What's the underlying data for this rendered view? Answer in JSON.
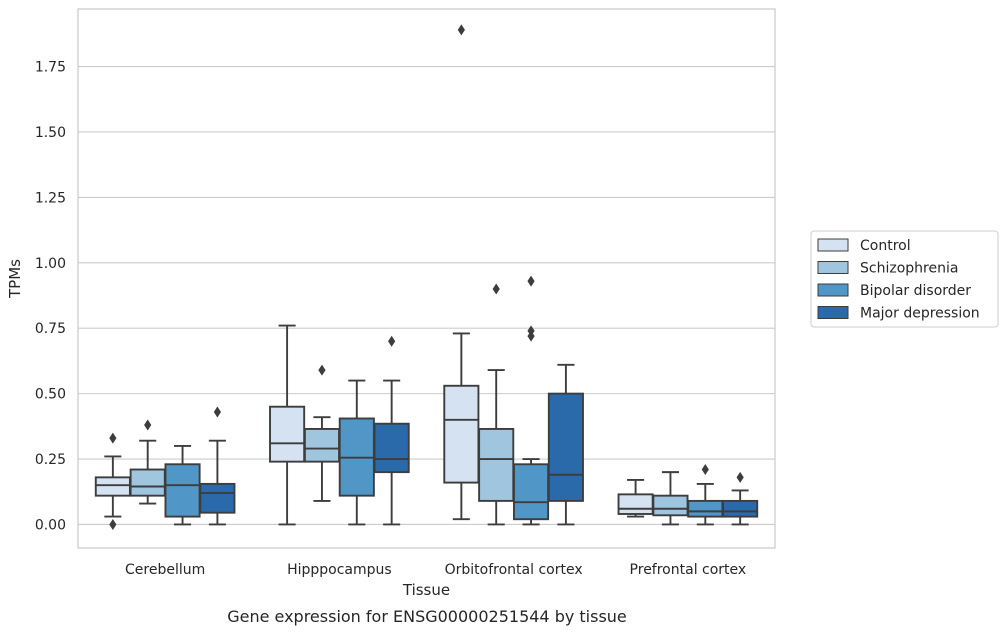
{
  "chart_data": {
    "type": "box",
    "caption": "Gene expression for ENSG00000251544 by tissue",
    "xlabel": "Tissue",
    "ylabel": "TPMs",
    "ylim": [
      -0.09,
      1.97
    ],
    "yticks": [
      "0.00",
      "0.25",
      "0.50",
      "0.75",
      "1.00",
      "1.25",
      "1.50",
      "1.75"
    ],
    "categories": [
      "Cerebellum",
      "Hipppocampus",
      "Orbitofrontal cortex",
      "Prefrontal cortex"
    ],
    "grid": true,
    "legend_position": "right",
    "series": [
      {
        "name": "Control",
        "color": "#d4e2f1",
        "boxes": [
          {
            "q1": 0.11,
            "median": 0.15,
            "q3": 0.18,
            "whislo": 0.03,
            "whishi": 0.26,
            "fliers": [
              0.33,
              0.0
            ]
          },
          {
            "q1": 0.24,
            "median": 0.31,
            "q3": 0.45,
            "whislo": 0.0,
            "whishi": 0.76,
            "fliers": []
          },
          {
            "q1": 0.16,
            "median": 0.4,
            "q3": 0.53,
            "whislo": 0.02,
            "whishi": 0.73,
            "fliers": [
              1.89
            ]
          },
          {
            "q1": 0.04,
            "median": 0.06,
            "q3": 0.115,
            "whislo": 0.03,
            "whishi": 0.17,
            "fliers": []
          }
        ]
      },
      {
        "name": "Schizophrenia",
        "color": "#9fc5df",
        "boxes": [
          {
            "q1": 0.11,
            "median": 0.145,
            "q3": 0.21,
            "whislo": 0.08,
            "whishi": 0.32,
            "fliers": [
              0.38
            ]
          },
          {
            "q1": 0.24,
            "median": 0.29,
            "q3": 0.365,
            "whislo": 0.09,
            "whishi": 0.41,
            "fliers": [
              0.59
            ]
          },
          {
            "q1": 0.09,
            "median": 0.25,
            "q3": 0.365,
            "whislo": 0.0,
            "whishi": 0.59,
            "fliers": [
              0.9
            ]
          },
          {
            "q1": 0.035,
            "median": 0.06,
            "q3": 0.11,
            "whislo": 0.0,
            "whishi": 0.2,
            "fliers": []
          }
        ]
      },
      {
        "name": "Bipolar disorder",
        "color": "#5096c6",
        "boxes": [
          {
            "q1": 0.03,
            "median": 0.15,
            "q3": 0.23,
            "whislo": 0.0,
            "whishi": 0.3,
            "fliers": []
          },
          {
            "q1": 0.11,
            "median": 0.255,
            "q3": 0.405,
            "whislo": 0.0,
            "whishi": 0.55,
            "fliers": []
          },
          {
            "q1": 0.02,
            "median": 0.085,
            "q3": 0.23,
            "whislo": 0.0,
            "whishi": 0.25,
            "fliers": [
              0.93,
              0.74,
              0.72
            ]
          },
          {
            "q1": 0.03,
            "median": 0.05,
            "q3": 0.09,
            "whislo": 0.0,
            "whishi": 0.155,
            "fliers": [
              0.21
            ]
          }
        ]
      },
      {
        "name": "Major depression",
        "color": "#2b6aaa",
        "boxes": [
          {
            "q1": 0.045,
            "median": 0.12,
            "q3": 0.155,
            "whislo": 0.0,
            "whishi": 0.32,
            "fliers": [
              0.43
            ]
          },
          {
            "q1": 0.2,
            "median": 0.25,
            "q3": 0.385,
            "whislo": 0.0,
            "whishi": 0.55,
            "fliers": [
              0.7
            ]
          },
          {
            "q1": 0.09,
            "median": 0.19,
            "q3": 0.5,
            "whislo": 0.0,
            "whishi": 0.61,
            "fliers": []
          },
          {
            "q1": 0.03,
            "median": 0.05,
            "q3": 0.09,
            "whislo": 0.0,
            "whishi": 0.13,
            "fliers": [
              0.18
            ]
          }
        ]
      }
    ]
  }
}
